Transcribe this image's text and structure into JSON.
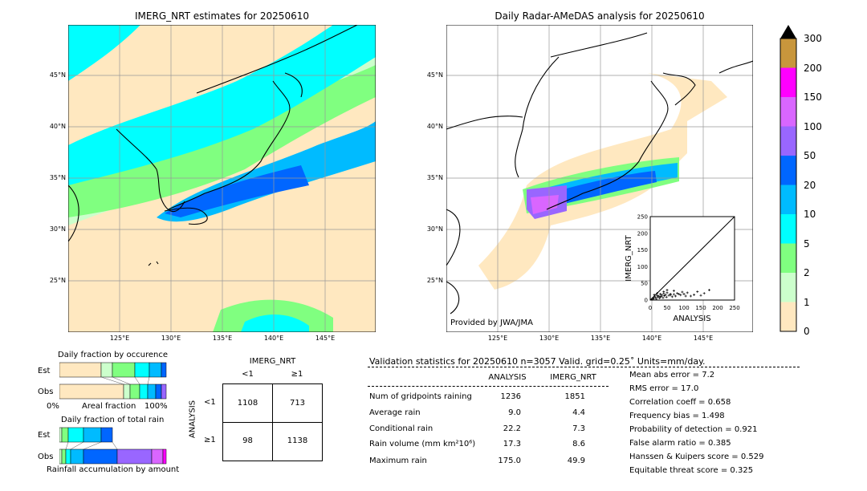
{
  "left_map": {
    "title": "IMERG_NRT estimates for 20250610",
    "lat_labels": [
      "45°N",
      "40°N",
      "35°N",
      "30°N",
      "25°N"
    ],
    "lon_labels": [
      "125°E",
      "130°E",
      "135°E",
      "140°E",
      "145°E"
    ]
  },
  "right_map": {
    "title": "Daily Radar-AMeDAS analysis for 20250610",
    "lat_labels": [
      "45°N",
      "40°N",
      "35°N",
      "30°N",
      "25°N"
    ],
    "lon_labels": [
      "125°E",
      "130°E",
      "135°E",
      "140°E",
      "145°E"
    ],
    "credit": "Provided by JWA/JMA"
  },
  "colorbar": {
    "ticks": [
      "300",
      "200",
      "150",
      "100",
      "50",
      "20",
      "10",
      "5",
      "2",
      "1",
      "0"
    ],
    "colors": [
      "#c8963c",
      "#ff00ff",
      "#d966ff",
      "#9966ff",
      "#0066ff",
      "#00bbff",
      "#00ffff",
      "#80ff80",
      "#ccffcc",
      "#ffe8c0"
    ]
  },
  "occurrence": {
    "title": "Daily fraction by occurence",
    "row_est": "Est",
    "row_obs": "Obs",
    "axis_left": "0%",
    "axis_mid": "Areal fraction",
    "axis_right": "100%"
  },
  "total_rain": {
    "title": "Daily fraction of total rain",
    "row_est": "Est",
    "row_obs": "Obs",
    "axis_label": "Rainfall accumulation by amount"
  },
  "contingency": {
    "col_header": "IMERG_NRT",
    "col_lt": "<1",
    "col_ge": "≥1",
    "row_header": "ANALYSIS",
    "row_lt": "<1",
    "row_ge": "≥1",
    "cells": [
      "1108",
      "713",
      "98",
      "1138"
    ]
  },
  "validation": {
    "header": "Validation statistics for 20250610  n=3057 Valid. grid=0.25˚ Units=mm/day.",
    "col_analysis": "ANALYSIS",
    "col_imerg": "IMERG_NRT",
    "rows": [
      {
        "label": "Num of gridpoints raining",
        "analysis": "1236",
        "imerg": "1851"
      },
      {
        "label": "Average rain",
        "analysis": "9.0",
        "imerg": "4.4"
      },
      {
        "label": "Conditional rain",
        "analysis": "22.2",
        "imerg": "7.3"
      },
      {
        "label": "Rain volume (mm km²10⁶)",
        "analysis": "17.3",
        "imerg": "8.6"
      },
      {
        "label": "Maximum rain",
        "analysis": "175.0",
        "imerg": "49.9"
      }
    ],
    "scores": [
      "Mean abs error =    7.2",
      "RMS error =   17.0",
      "Correlation coeff =  0.658",
      "Frequency bias =  1.498",
      "Probability of detection =  0.921",
      "False alarm ratio =  0.385",
      "Hanssen & Kuipers score =  0.529",
      "Equitable threat score =  0.325"
    ]
  },
  "chart_data": {
    "type": "scatter",
    "xlabel": "ANALYSIS",
    "ylabel": "IMERG_NRT",
    "xlim": [
      0,
      250
    ],
    "ylim": [
      0,
      250
    ],
    "x_ticks": [
      "0",
      "25",
      "50",
      "75",
      "100",
      "125",
      "150",
      "175",
      "200",
      "225",
      "250"
    ],
    "y_ticks": [
      "0",
      "25",
      "50",
      "75",
      "100",
      "125",
      "150",
      "175",
      "200",
      "225",
      "250"
    ],
    "points_x": [
      5,
      8,
      10,
      12,
      15,
      18,
      20,
      22,
      25,
      28,
      30,
      33,
      35,
      38,
      40,
      42,
      45,
      48,
      50,
      55,
      60,
      65,
      70,
      75,
      80,
      90,
      100,
      110,
      120,
      130,
      140,
      150,
      160,
      175,
      12,
      20,
      30,
      40,
      50,
      60,
      70,
      85,
      95,
      105
    ],
    "points_y": [
      2,
      6,
      4,
      10,
      8,
      3,
      14,
      9,
      12,
      6,
      18,
      11,
      15,
      7,
      20,
      13,
      16,
      9,
      22,
      14,
      18,
      10,
      17,
      12,
      20,
      15,
      18,
      22,
      12,
      16,
      25,
      14,
      20,
      30,
      16,
      20,
      10,
      25,
      30,
      15,
      28,
      18,
      24,
      12
    ]
  }
}
